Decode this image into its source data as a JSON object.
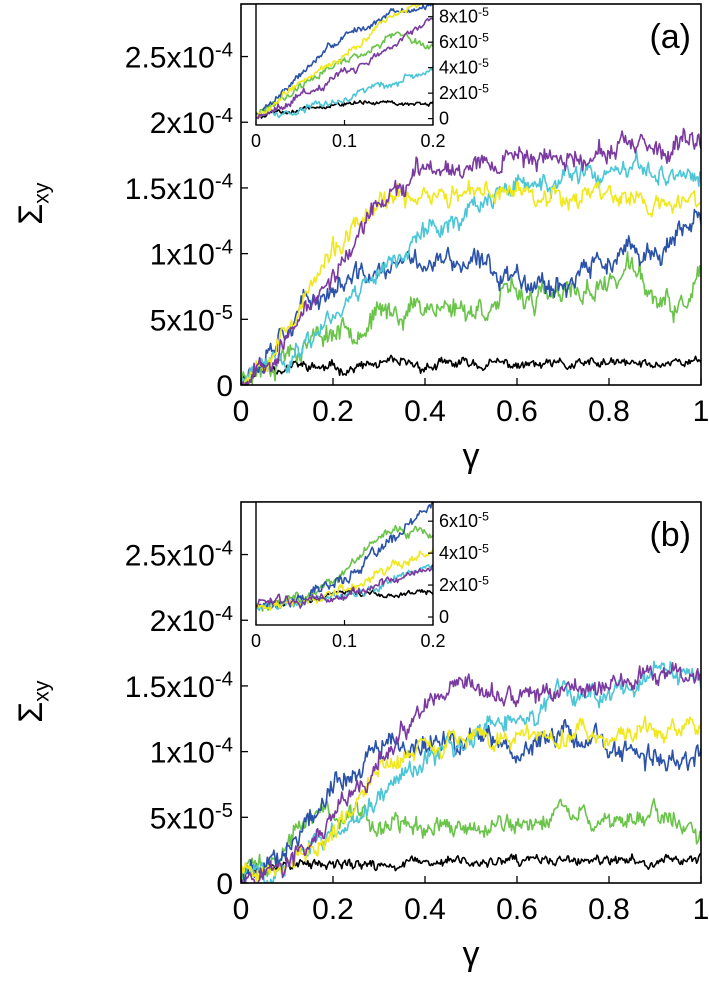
{
  "chart_data": [
    {
      "type": "line",
      "panel_label": "(a)",
      "xlabel": "γ",
      "ylabel": "Σxy",
      "ylabel_main": "Σ",
      "ylabel_sub": "xy",
      "xlim": [
        0,
        1
      ],
      "ylim": [
        0,
        0.00029
      ],
      "x_ticks": [
        0,
        0.2,
        0.4,
        0.6,
        0.8,
        1
      ],
      "x_tick_labels": [
        "0",
        "0.2",
        "0.4",
        "0.6",
        "0.8",
        "1"
      ],
      "y_ticks": [
        0,
        5e-05,
        0.0001,
        0.00015,
        0.0002,
        0.00025
      ],
      "y_tick_labels": [
        {
          "mantissa": "0",
          "exp": ""
        },
        {
          "mantissa": "5x10",
          "exp": "-5"
        },
        {
          "mantissa": "1x10",
          "exp": "-4"
        },
        {
          "mantissa": "1.5x10",
          "exp": "-4"
        },
        {
          "mantissa": "2x10",
          "exp": "-4"
        },
        {
          "mantissa": "2.5x10",
          "exp": "-4"
        }
      ],
      "series": [
        {
          "color": "#000000",
          "noise": 3.5e-06,
          "seed": 11,
          "x": [
            0,
            0.05,
            0.1,
            0.2,
            0.3,
            0.4,
            0.5,
            0.6,
            0.7,
            0.8,
            0.9,
            0.95,
            1
          ],
          "y": [
            5e-06,
            1.3e-05,
            1.5e-05,
            1.2e-05,
            1.5e-05,
            1.4e-05,
            1.6e-05,
            1.5e-05,
            1.4e-05,
            1.6e-05,
            1.5e-05,
            2e-05,
            1.6e-05
          ]
        },
        {
          "color": "#6ac44a",
          "noise": 8e-06,
          "seed": 23,
          "x": [
            0,
            0.1,
            0.2,
            0.3,
            0.4,
            0.5,
            0.6,
            0.7,
            0.8,
            0.85,
            0.9,
            0.95,
            1
          ],
          "y": [
            5e-06,
            2.8e-05,
            4.2e-05,
            5.2e-05,
            6.2e-05,
            5.8e-05,
            6.8e-05,
            6.5e-05,
            7.8e-05,
            9e-05,
            6.4e-05,
            5.5e-05,
            8e-05
          ]
        },
        {
          "color": "#2a52a8",
          "noise": 8e-06,
          "seed": 37,
          "x": [
            0,
            0.1,
            0.2,
            0.3,
            0.4,
            0.5,
            0.6,
            0.7,
            0.8,
            0.9,
            1
          ],
          "y": [
            5e-06,
            5e-05,
            7.5e-05,
            8.5e-05,
            9.5e-05,
            9e-05,
            8.5e-05,
            7.8e-05,
            9.5e-05,
            0.0001,
            0.000122
          ]
        },
        {
          "color": "#4cc6d6",
          "noise": 7e-06,
          "seed": 41,
          "x": [
            0,
            0.1,
            0.2,
            0.3,
            0.4,
            0.5,
            0.6,
            0.7,
            0.8,
            0.9,
            1
          ],
          "y": [
            3e-06,
            2e-05,
            5.5e-05,
            9e-05,
            0.000115,
            0.000135,
            0.00015,
            0.000155,
            0.000158,
            0.000162,
            0.000158
          ]
        },
        {
          "color": "#f0e81c",
          "noise": 7e-06,
          "seed": 53,
          "x": [
            0,
            0.1,
            0.2,
            0.3,
            0.4,
            0.5,
            0.6,
            0.7,
            0.8,
            0.9,
            1
          ],
          "y": [
            3e-06,
            4.5e-05,
            0.0001,
            0.000135,
            0.000148,
            0.000142,
            0.00015,
            0.000145,
            0.000148,
            0.000135,
            0.00014
          ]
        },
        {
          "color": "#7b3aa0",
          "noise": 7e-06,
          "seed": 67,
          "x": [
            0,
            0.1,
            0.2,
            0.3,
            0.4,
            0.5,
            0.6,
            0.7,
            0.8,
            0.9,
            1
          ],
          "y": [
            3e-06,
            3.5e-05,
            8.5e-05,
            0.000135,
            0.000165,
            0.00017,
            0.000175,
            0.000172,
            0.00018,
            0.000175,
            0.000182
          ]
        }
      ],
      "inset": {
        "xlim": [
          0,
          0.2
        ],
        "ylim": [
          -5e-06,
          9e-05
        ],
        "x_ticks": [
          0,
          0.1,
          0.2
        ],
        "x_tick_labels": [
          "0",
          "0.1",
          "0.2"
        ],
        "y_ticks": [
          0,
          2e-05,
          4e-05,
          6e-05,
          8e-05
        ],
        "y_tick_labels": [
          {
            "mantissa": "0",
            "exp": ""
          },
          {
            "mantissa": "2x10",
            "exp": "-5"
          },
          {
            "mantissa": "4x10",
            "exp": "-5"
          },
          {
            "mantissa": "6x10",
            "exp": "-5"
          },
          {
            "mantissa": "8x10",
            "exp": "-5"
          }
        ],
        "series": [
          {
            "color": "#000000",
            "noise": 1.5e-06,
            "seed": 5,
            "x": [
              0,
              0.05,
              0.1,
              0.15,
              0.2
            ],
            "y": [
              2e-06,
              8e-06,
              1.2e-05,
              1.3e-05,
              1.2e-05
            ]
          },
          {
            "color": "#6ac44a",
            "noise": 2.5e-06,
            "seed": 6,
            "x": [
              0,
              0.05,
              0.1,
              0.15,
              0.2
            ],
            "y": [
              2e-06,
              2.5e-05,
              4.5e-05,
              6.5e-05,
              5.8e-05
            ]
          },
          {
            "color": "#2a52a8",
            "noise": 2.5e-06,
            "seed": 7,
            "x": [
              0,
              0.05,
              0.1,
              0.15,
              0.2
            ],
            "y": [
              2e-06,
              3.5e-05,
              6.5e-05,
              8.2e-05,
              8.8e-05
            ]
          },
          {
            "color": "#4cc6d6",
            "noise": 2.5e-06,
            "seed": 8,
            "x": [
              0,
              0.05,
              0.1,
              0.15,
              0.2
            ],
            "y": [
              2e-06,
              8e-06,
              1.5e-05,
              2.8e-05,
              4e-05
            ]
          },
          {
            "color": "#f0e81c",
            "noise": 2.5e-06,
            "seed": 9,
            "x": [
              0,
              0.05,
              0.1,
              0.15,
              0.2
            ],
            "y": [
              2e-06,
              2.8e-05,
              5e-05,
              8e-05,
              9.5e-05
            ]
          },
          {
            "color": "#7b3aa0",
            "noise": 2.5e-06,
            "seed": 10,
            "x": [
              0,
              0.05,
              0.1,
              0.15,
              0.2
            ],
            "y": [
              2e-06,
              1.8e-05,
              3.5e-05,
              5.5e-05,
              8e-05
            ]
          }
        ]
      }
    },
    {
      "type": "line",
      "panel_label": "(b)",
      "xlabel": "γ",
      "ylabel": "Σxy",
      "ylabel_main": "Σ",
      "ylabel_sub": "xy",
      "xlim": [
        0,
        1
      ],
      "ylim": [
        0,
        0.00029
      ],
      "x_ticks": [
        0,
        0.2,
        0.4,
        0.6,
        0.8,
        1
      ],
      "x_tick_labels": [
        "0",
        "0.2",
        "0.4",
        "0.6",
        "0.8",
        "1"
      ],
      "y_ticks": [
        0,
        5e-05,
        0.0001,
        0.00015,
        0.0002,
        0.00025
      ],
      "y_tick_labels": [
        {
          "mantissa": "0",
          "exp": ""
        },
        {
          "mantissa": "5x10",
          "exp": "-5"
        },
        {
          "mantissa": "1x10",
          "exp": "-4"
        },
        {
          "mantissa": "1.5x10",
          "exp": "-4"
        },
        {
          "mantissa": "2x10",
          "exp": "-4"
        },
        {
          "mantissa": "2.5x10",
          "exp": "-4"
        }
      ],
      "series": [
        {
          "color": "#000000",
          "noise": 3.5e-06,
          "seed": 71,
          "x": [
            0,
            0.05,
            0.1,
            0.2,
            0.3,
            0.4,
            0.5,
            0.6,
            0.7,
            0.8,
            0.9,
            0.95,
            1
          ],
          "y": [
            8e-06,
            1e-05,
            1.5e-05,
            1.4e-05,
            1.3e-05,
            1.5e-05,
            1.6e-05,
            1.5e-05,
            1.7e-05,
            1.5e-05,
            1.6e-05,
            1.9e-05,
            1.8e-05
          ]
        },
        {
          "color": "#6ac44a",
          "noise": 7e-06,
          "seed": 73,
          "x": [
            0,
            0.05,
            0.1,
            0.15,
            0.2,
            0.3,
            0.4,
            0.5,
            0.6,
            0.7,
            0.8,
            0.9,
            1
          ],
          "y": [
            8e-06,
            1e-05,
            3e-05,
            5.5e-05,
            5e-05,
            4.5e-05,
            4e-05,
            4.5e-05,
            4e-05,
            5.5e-05,
            4.5e-05,
            5.5e-05,
            4e-05
          ]
        },
        {
          "color": "#2a52a8",
          "noise": 8e-06,
          "seed": 79,
          "x": [
            0,
            0.05,
            0.1,
            0.2,
            0.3,
            0.4,
            0.5,
            0.6,
            0.7,
            0.8,
            0.9,
            1
          ],
          "y": [
            8e-06,
            1.2e-05,
            3e-05,
            7.5e-05,
            0.0001,
            0.000105,
            0.000112,
            0.0001,
            0.000115,
            0.0001,
            9.2e-05,
            0.0001
          ]
        },
        {
          "color": "#4cc6d6",
          "noise": 7e-06,
          "seed": 83,
          "x": [
            0,
            0.1,
            0.2,
            0.3,
            0.4,
            0.5,
            0.6,
            0.7,
            0.8,
            0.9,
            1
          ],
          "y": [
            8e-06,
            1.2e-05,
            3.5e-05,
            7e-05,
            9.5e-05,
            0.00011,
            0.000125,
            0.00014,
            0.000148,
            0.000155,
            0.000152
          ]
        },
        {
          "color": "#f0e81c",
          "noise": 7e-06,
          "seed": 89,
          "x": [
            0,
            0.1,
            0.2,
            0.3,
            0.4,
            0.5,
            0.6,
            0.7,
            0.8,
            0.9,
            1
          ],
          "y": [
            8e-06,
            1.2e-05,
            4e-05,
            8.5e-05,
            0.000105,
            0.000112,
            0.000108,
            0.000115,
            0.00011,
            0.000115,
            0.000118
          ]
        },
        {
          "color": "#7b3aa0",
          "noise": 7e-06,
          "seed": 97,
          "x": [
            0,
            0.1,
            0.2,
            0.3,
            0.4,
            0.5,
            0.6,
            0.7,
            0.8,
            0.9,
            1
          ],
          "y": [
            8e-06,
            1.2e-05,
            4.5e-05,
            9e-05,
            0.00013,
            0.000145,
            0.00014,
            0.000148,
            0.000152,
            0.000155,
            0.00016
          ]
        }
      ],
      "inset": {
        "xlim": [
          0,
          0.2
        ],
        "ylim": [
          -5e-06,
          7.2e-05
        ],
        "x_ticks": [
          0,
          0.1,
          0.2
        ],
        "x_tick_labels": [
          "0",
          "0.1",
          "0.2"
        ],
        "y_ticks": [
          0,
          2e-05,
          4e-05,
          6e-05
        ],
        "y_tick_labels": [
          {
            "mantissa": "0",
            "exp": ""
          },
          {
            "mantissa": "2x10",
            "exp": "-5"
          },
          {
            "mantissa": "4x10",
            "exp": "-5"
          },
          {
            "mantissa": "6x10",
            "exp": "-5"
          }
        ],
        "series": [
          {
            "color": "#000000",
            "noise": 1.5e-06,
            "seed": 15,
            "x": [
              0,
              0.05,
              0.1,
              0.15,
              0.2
            ],
            "y": [
              8e-06,
              9e-06,
              1.5e-05,
              1.4e-05,
              1.6e-05
            ]
          },
          {
            "color": "#6ac44a",
            "noise": 3e-06,
            "seed": 16,
            "x": [
              0,
              0.05,
              0.1,
              0.15,
              0.2
            ],
            "y": [
              8e-06,
              1e-05,
              3e-05,
              5.8e-05,
              5e-05
            ]
          },
          {
            "color": "#2a52a8",
            "noise": 3e-06,
            "seed": 17,
            "x": [
              0,
              0.05,
              0.1,
              0.15,
              0.2
            ],
            "y": [
              8e-06,
              1.1e-05,
              2.5e-05,
              4.5e-05,
              7e-05
            ]
          },
          {
            "color": "#4cc6d6",
            "noise": 2.5e-06,
            "seed": 18,
            "x": [
              0,
              0.05,
              0.1,
              0.15,
              0.2
            ],
            "y": [
              8e-06,
              9e-06,
              1.4e-05,
              2.2e-05,
              3e-05
            ]
          },
          {
            "color": "#f0e81c",
            "noise": 2.5e-06,
            "seed": 19,
            "x": [
              0,
              0.05,
              0.1,
              0.15,
              0.2
            ],
            "y": [
              8e-06,
              9e-06,
              1.6e-05,
              3e-05,
              4.2e-05
            ]
          },
          {
            "color": "#7b3aa0",
            "noise": 2.5e-06,
            "seed": 20,
            "x": [
              0,
              0.05,
              0.1,
              0.15,
              0.2
            ],
            "y": [
              8e-06,
              9e-06,
              1.3e-05,
              2.2e-05,
              3.2e-05
            ]
          }
        ]
      }
    }
  ]
}
